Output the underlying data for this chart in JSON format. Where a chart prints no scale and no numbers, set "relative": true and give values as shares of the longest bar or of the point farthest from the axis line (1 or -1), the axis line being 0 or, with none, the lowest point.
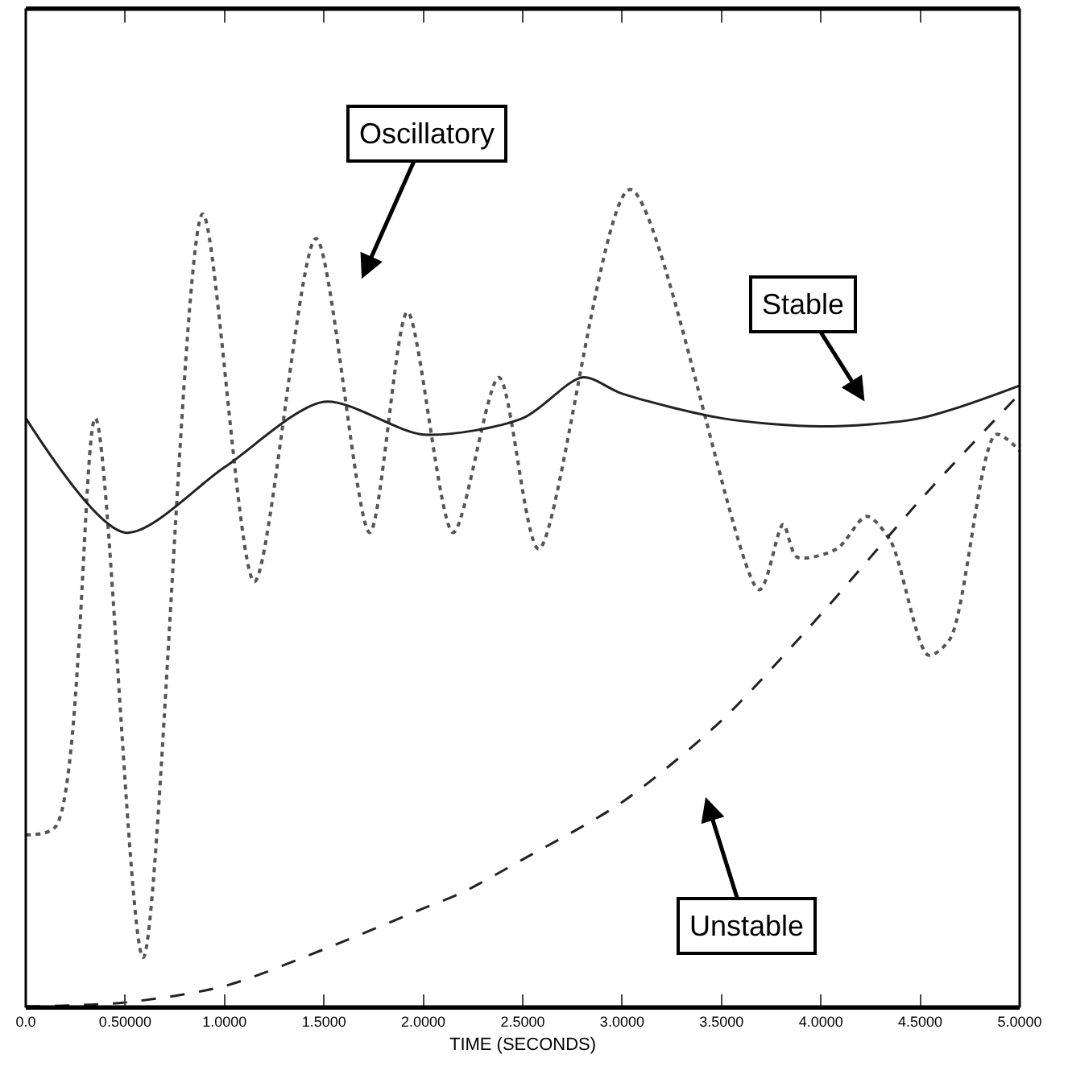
{
  "chart_data": {
    "type": "line",
    "relative": true,
    "xlabel": "TIME (SECONDS)",
    "xlim": [
      0,
      5
    ],
    "xticks": [
      {
        "value": 0,
        "label": "0.0"
      },
      {
        "value": 0.5,
        "label": "0.50000"
      },
      {
        "value": 1,
        "label": "1.0000"
      },
      {
        "value": 1.5,
        "label": "1.5000"
      },
      {
        "value": 2,
        "label": "2.0000"
      },
      {
        "value": 2.5,
        "label": "2.5000"
      },
      {
        "value": 3,
        "label": "3.0000"
      },
      {
        "value": 3.5,
        "label": "3.5000"
      },
      {
        "value": 4,
        "label": "4.0000"
      },
      {
        "value": 4.5,
        "label": "4.5000"
      },
      {
        "value": 5,
        "label": "5.0000"
      }
    ],
    "series": [
      {
        "color": "#555555",
        "line_style": "dotted",
        "x": [
          0,
          0.15,
          0.35,
          0.59,
          0.89,
          1.15,
          1.46,
          1.73,
          1.92,
          2.15,
          2.38,
          2.58,
          3.04,
          3.69,
          3.81,
          3.88,
          4.08,
          4.23,
          4.35,
          4.54,
          4.65,
          4.88,
          5
        ],
        "values": [
          0.21,
          0.22,
          0.72,
          0.06,
          0.97,
          0.52,
          0.94,
          0.58,
          0.85,
          0.58,
          0.77,
          0.56,
          1.0,
          0.51,
          0.59,
          0.55,
          0.56,
          0.6,
          0.57,
          0.43,
          0.45,
          0.7,
          0.68
        ]
      },
      {
        "color": "#222222",
        "line_style": "solid",
        "x": [
          0,
          0.5,
          1,
          1.5,
          2,
          2.5,
          2.8,
          3,
          3.5,
          4,
          4.5,
          5
        ],
        "values": [
          0.72,
          0.58,
          0.66,
          0.74,
          0.7,
          0.72,
          0.77,
          0.75,
          0.72,
          0.71,
          0.72,
          0.76
        ]
      },
      {
        "color": "#222222",
        "line_style": "dashed",
        "x": [
          0,
          0.5,
          1,
          1.5,
          2,
          2.2,
          2.5,
          3,
          3.5,
          4,
          4.5,
          5
        ],
        "values": [
          0,
          0.005,
          0.025,
          0.07,
          0.12,
          0.14,
          0.18,
          0.25,
          0.35,
          0.48,
          0.62,
          0.75
        ]
      }
    ],
    "annotations": [
      "Oscillatory",
      "Stable",
      "Unstable"
    ],
    "marker": "none"
  }
}
